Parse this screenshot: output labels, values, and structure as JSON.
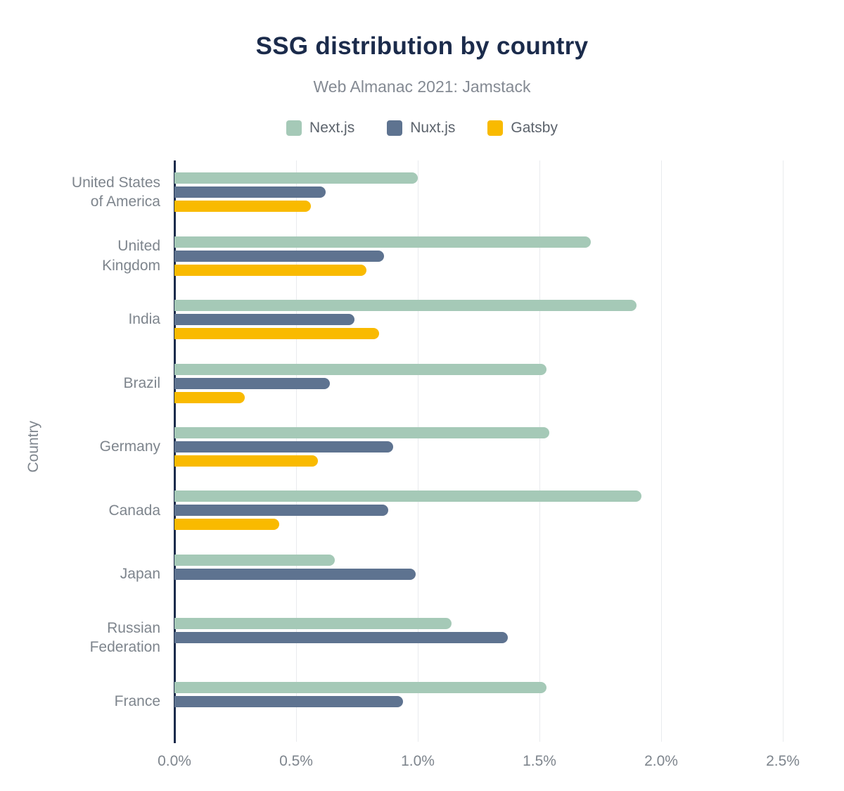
{
  "colors": {
    "background": "#ffffff",
    "title": "#1b2b4b",
    "subtitle": "#848a93",
    "legend_text": "#5c636c",
    "axis_line": "#1b2b4b",
    "gridline": "#e9ebee",
    "tick_label": "#7e858d",
    "category_label": "#7e858d"
  },
  "chart_data": {
    "type": "bar",
    "orientation": "horizontal",
    "title": "SSG distribution by country",
    "subtitle": "Web Almanac 2021: Jamstack",
    "ylabel": "Country",
    "xlabel": "",
    "unit": "%",
    "xlim": [
      0,
      2.5
    ],
    "grid": true,
    "legend_position": "top",
    "x_tick_values": [
      0,
      0.5,
      1.0,
      1.5,
      2.0,
      2.5
    ],
    "x_tick_labels": [
      "0.0%",
      "0.5%",
      "1.0%",
      "1.5%",
      "2.0%",
      "2.5%"
    ],
    "categories": [
      "United States\nof America",
      "United\nKingdom",
      "India",
      "Brazil",
      "Germany",
      "Canada",
      "Japan",
      "Russian\nFederation",
      "France"
    ],
    "series": [
      {
        "name": "Next.js",
        "color": "#a5c9b7",
        "values": [
          1.0,
          1.71,
          1.9,
          1.53,
          1.54,
          1.92,
          0.66,
          1.14,
          1.53
        ]
      },
      {
        "name": "Nuxt.js",
        "color": "#5e7390",
        "values": [
          0.62,
          0.86,
          0.74,
          0.64,
          0.9,
          0.88,
          0.99,
          1.37,
          0.94
        ]
      },
      {
        "name": "Gatsby",
        "color": "#f9ba00",
        "values": [
          0.56,
          0.79,
          0.84,
          0.29,
          0.59,
          0.43,
          0,
          0,
          0
        ]
      }
    ]
  }
}
